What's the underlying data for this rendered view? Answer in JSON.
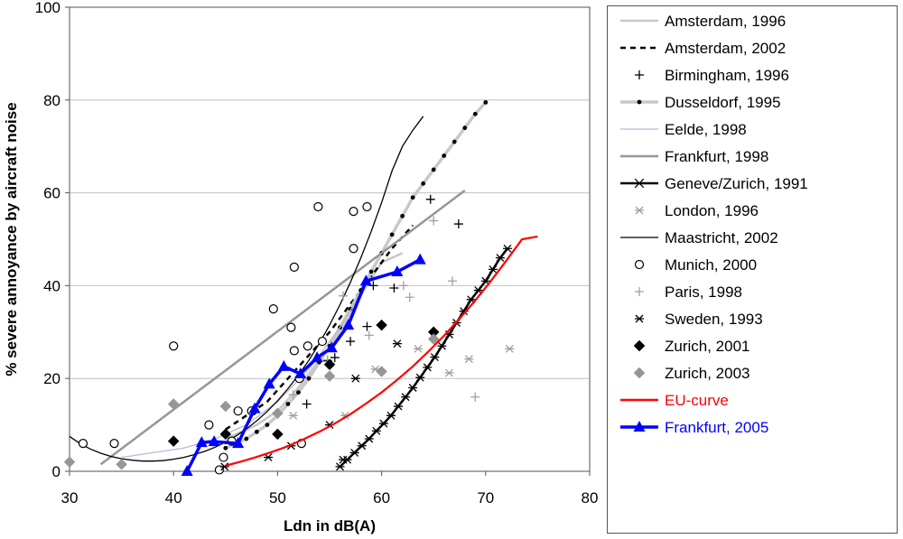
{
  "chart_data": {
    "type": "line",
    "title": "",
    "xlabel": "Ldn in dB(A)",
    "ylabel": "% severe annoyance by aircraft noise",
    "xlim": [
      30,
      80
    ],
    "ylim": [
      0,
      100
    ],
    "xticks": [
      "30",
      "40",
      "50",
      "60",
      "70",
      "80"
    ],
    "yticks": [
      "0",
      "20",
      "40",
      "60",
      "80",
      "100"
    ],
    "grid": "horizontal",
    "legend_position": "right",
    "series": [
      {
        "name": "Amsterdam, 1996",
        "style": "line",
        "color": "#c8c8c8",
        "x": [
          45,
          48,
          50,
          52,
          54,
          56,
          58,
          60,
          62
        ],
        "y": [
          7,
          10,
          13,
          18,
          24,
          30,
          38,
          45,
          47
        ]
      },
      {
        "name": "Amsterdam, 2002",
        "style": "dashed",
        "color": "#000000",
        "x": [
          45,
          47,
          49,
          51,
          53,
          55,
          57,
          59,
          61,
          63
        ],
        "y": [
          9,
          12,
          15,
          20,
          25,
          30,
          36,
          42,
          48,
          53
        ]
      },
      {
        "name": "Birmingham, 1996",
        "style": "marker",
        "marker": "plus",
        "color": "#000000",
        "x": [
          52.8,
          54.8,
          55.5,
          57,
          58.6,
          59.2,
          61.2,
          64.7,
          67.4
        ],
        "y": [
          14.5,
          23.8,
          24.5,
          28,
          31.2,
          40,
          39.5,
          58.6,
          53.3
        ]
      },
      {
        "name": "Dusseldorf, 1995",
        "style": "line+dots",
        "color": "#000000",
        "line_color": "#c8c8c8",
        "x": [
          45,
          46,
          47,
          48,
          49,
          50,
          51,
          52,
          53,
          54,
          55,
          56,
          57,
          58,
          59,
          60,
          61,
          62,
          63,
          64,
          65,
          66,
          67,
          68,
          69,
          70
        ],
        "y": [
          5,
          6,
          7,
          8.5,
          10,
          12,
          14.5,
          17,
          20,
          23.5,
          27,
          31,
          35,
          39,
          43,
          47,
          51,
          55,
          59,
          62,
          65,
          68,
          71,
          74,
          77,
          79.5
        ]
      },
      {
        "name": "Eelde, 1998",
        "style": "line",
        "color": "#b8b8d8",
        "x": [
          35,
          38,
          41,
          44,
          47,
          50,
          53,
          56,
          59
        ],
        "y": [
          3,
          4,
          5,
          7,
          10,
          15,
          22,
          31,
          42
        ]
      },
      {
        "name": "Frankfurt, 1998",
        "style": "line",
        "color": "#969696",
        "x": [
          33,
          68
        ],
        "y": [
          1.5,
          60.5
        ]
      },
      {
        "name": "Geneve/Zurich, 1991",
        "style": "line+star",
        "color": "#000000",
        "x": [
          56,
          56.7,
          57.4,
          58.1,
          58.8,
          59.5,
          60.2,
          60.9,
          61.6,
          62.3,
          63,
          63.7,
          64.4,
          65.1,
          65.8,
          66.5,
          67.2,
          67.9,
          68.6,
          69.3,
          70,
          70.7,
          71.4,
          72.1
        ],
        "y": [
          1,
          2.5,
          4,
          5.5,
          7,
          8.7,
          10.3,
          12,
          14,
          16,
          18,
          20.2,
          22.4,
          24.6,
          27,
          29.5,
          32,
          34.5,
          37,
          39,
          41,
          43.5,
          46,
          48
        ]
      },
      {
        "name": "London, 1996",
        "style": "marker",
        "marker": "star",
        "color": "#a0a0a0",
        "x": [
          51.5,
          56.5,
          59.4,
          63.5,
          66.5,
          68.4,
          72.3
        ],
        "y": [
          12,
          12,
          22,
          26.4,
          21.2,
          24.2,
          26.4
        ]
      },
      {
        "name": "Maastricht, 2002",
        "style": "line",
        "color": "#000000",
        "x": [
          30,
          31,
          32,
          33,
          34,
          35,
          36,
          37,
          38,
          39,
          40,
          41,
          42,
          43,
          44,
          45,
          46,
          47,
          48,
          49,
          50,
          51,
          52,
          53,
          54,
          55,
          56,
          57,
          58,
          59,
          60,
          61,
          62,
          63,
          64
        ],
        "y": [
          7.5,
          6,
          4.8,
          3.9,
          3.2,
          2.7,
          2.4,
          2.2,
          2.2,
          2.3,
          2.6,
          3,
          3.6,
          4.3,
          5.2,
          6.3,
          7.6,
          9.1,
          10.9,
          12.9,
          15.2,
          17.8,
          20.7,
          23.9,
          27.5,
          31.5,
          35.9,
          40.7,
          46,
          51.7,
          57.9,
          64.7,
          70,
          73.5,
          76.5
        ]
      },
      {
        "name": "Munich, 2000",
        "style": "marker",
        "marker": "circle",
        "color": "#000000",
        "x": [
          31.3,
          34.3,
          40,
          43.4,
          44.4,
          44.8,
          46.2,
          45.6,
          47.6,
          47.5,
          49.6,
          51.3,
          51.6,
          51.6,
          52.1,
          52.3,
          52.9,
          53.9,
          54.3,
          57.3,
          57.3,
          58.6
        ],
        "y": [
          6,
          6,
          27,
          10,
          0.3,
          3,
          13,
          6.5,
          13,
          13,
          35,
          31,
          26,
          44,
          20,
          6,
          27,
          57,
          28,
          48,
          56,
          57
        ]
      },
      {
        "name": "Paris, 1998",
        "style": "marker",
        "marker": "plus",
        "color": "#a0a0a0",
        "x": [
          51.5,
          54.8,
          56.3,
          58.8,
          62.1,
          62.7,
          65,
          66.8,
          69
        ],
        "y": [
          16.5,
          24,
          37.8,
          29.3,
          40,
          37.5,
          54,
          41,
          16
        ]
      },
      {
        "name": "Sweden, 1993",
        "style": "marker",
        "marker": "star",
        "color": "#000000",
        "x": [
          44.9,
          49.1,
          51.3,
          55,
          56.3,
          57.5,
          61.5
        ],
        "y": [
          1,
          3,
          5.5,
          10,
          2.5,
          20,
          27.5
        ]
      },
      {
        "name": "Zurich, 2001",
        "style": "marker",
        "marker": "diamond",
        "color": "#000000",
        "x": [
          40,
          45,
          50,
          55,
          60,
          65
        ],
        "y": [
          6.5,
          8,
          8,
          23,
          31.5,
          30
        ]
      },
      {
        "name": "Zurich, 2003",
        "style": "marker",
        "marker": "diamond",
        "color": "#969696",
        "x": [
          30,
          35,
          40,
          45,
          50,
          55,
          60,
          65
        ],
        "y": [
          2,
          1.5,
          14.5,
          14,
          12.5,
          20.5,
          21.5,
          28.5
        ]
      },
      {
        "name": "EU-curve",
        "style": "line",
        "color": "#ff0000",
        "x": [
          45,
          46.5,
          48,
          49.5,
          51,
          52.5,
          54,
          55.5,
          57,
          58.5,
          60,
          61.5,
          63,
          64.5,
          66,
          67.5,
          69,
          70.5,
          72,
          73.5,
          75
        ],
        "y": [
          1.2,
          2.1,
          3.1,
          4.2,
          5.4,
          6.9,
          8.5,
          10.3,
          12.3,
          14.6,
          17,
          19.7,
          22.6,
          25.8,
          29.2,
          32.9,
          36.8,
          41,
          45.4,
          50,
          50.6
        ]
      },
      {
        "name": "Frankfurt, 2005",
        "style": "line+triangle",
        "color": "#0000ff",
        "x": [
          41.3,
          42.7,
          43.9,
          46.2,
          47.8,
          49.2,
          50.6,
          52.2,
          53.8,
          55.2,
          56.8,
          58.5,
          61.5,
          63.7
        ],
        "y": [
          0,
          6.2,
          6.4,
          6,
          13.5,
          18.8,
          22.6,
          21,
          24.5,
          26.6,
          31.5,
          41,
          43,
          45.6
        ]
      }
    ]
  }
}
